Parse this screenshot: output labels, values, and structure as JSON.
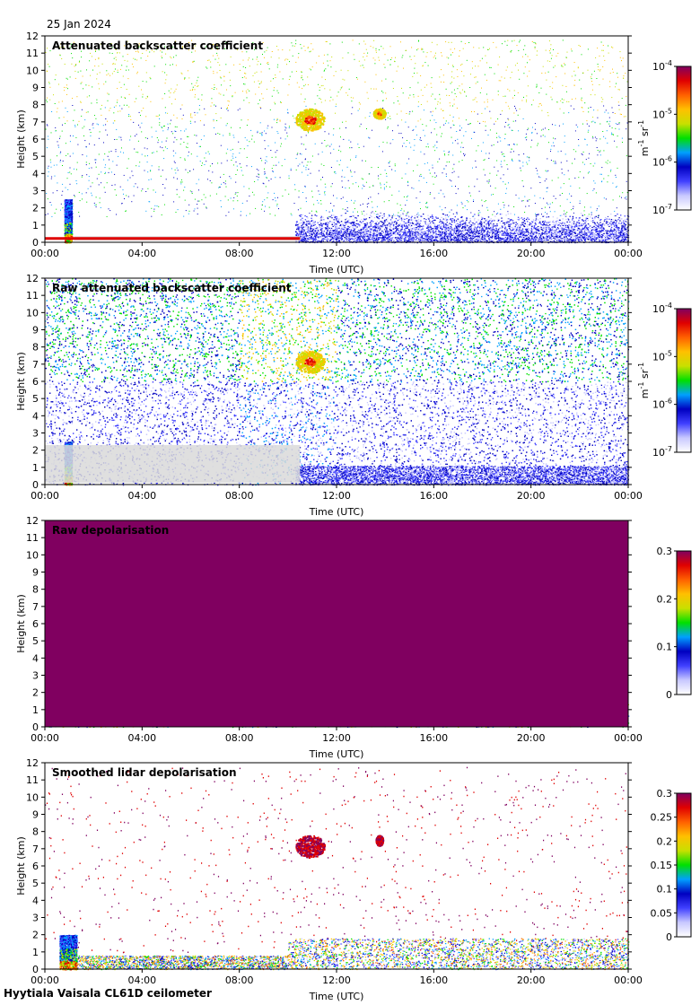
{
  "date": "25 Jan 2024",
  "footer": "Hyytiala Vaisala CL61D ceilometer",
  "colors": {
    "rainbow": [
      "#ffffff",
      "#c8c8ff",
      "#4040ff",
      "#0000c0",
      "#00a0ff",
      "#00e000",
      "#c8e000",
      "#ffc000",
      "#ff6000",
      "#e00000",
      "#800060"
    ],
    "gray_fill": "#d9d9d9",
    "frame": "#000000"
  },
  "chart_data": [
    {
      "type": "heatmap",
      "title": "Attenuated backscatter coefficient",
      "xlabel": "Time (UTC)",
      "ylabel": "Height (km)",
      "x_ticks": [
        "00:00",
        "04:00",
        "08:00",
        "12:00",
        "16:00",
        "20:00",
        "00:00"
      ],
      "y_ticks": [
        "0",
        "1",
        "2",
        "3",
        "4",
        "5",
        "6",
        "7",
        "8",
        "9",
        "10",
        "11",
        "12"
      ],
      "ylim": [
        0,
        12
      ],
      "colorbar": {
        "scale": "log",
        "ticks": [
          "10",
          "10",
          "10",
          "10"
        ],
        "exponents": [
          "-7",
          "-6",
          "-5",
          "-4"
        ],
        "unit": "m",
        "unit_exp1": "-1",
        "unit_mid": " sr",
        "unit_exp2": "-1"
      },
      "features": [
        {
          "kind": "rain",
          "time_h": [
            0.8,
            1.1
          ],
          "height_km": [
            0,
            2.5
          ],
          "level": "high"
        },
        {
          "kind": "low_layer",
          "time_h": [
            0,
            10.5
          ],
          "height_km": [
            0,
            0.3
          ],
          "level": "high"
        },
        {
          "kind": "aerosol",
          "time_h": [
            10.5,
            24
          ],
          "height_km": [
            0,
            1.7
          ],
          "level": "low"
        },
        {
          "kind": "cloud",
          "time_h": [
            10.3,
            11.5
          ],
          "height_km": [
            6.5,
            7.8
          ],
          "level": "mid"
        },
        {
          "kind": "cloud",
          "time_h": [
            13.5,
            14.0
          ],
          "height_km": [
            7.2,
            7.8
          ],
          "level": "mid"
        }
      ]
    },
    {
      "type": "heatmap",
      "title": "Raw attenuated backscatter coefficient",
      "xlabel": "Time (UTC)",
      "ylabel": "Height (km)",
      "x_ticks": [
        "00:00",
        "04:00",
        "08:00",
        "12:00",
        "16:00",
        "20:00",
        "00:00"
      ],
      "y_ticks": [
        "0",
        "1",
        "2",
        "3",
        "4",
        "5",
        "6",
        "7",
        "8",
        "9",
        "10",
        "11",
        "12"
      ],
      "ylim": [
        0,
        12
      ],
      "colorbar": {
        "scale": "log",
        "ticks": [
          "10",
          "10",
          "10",
          "10"
        ],
        "exponents": [
          "-7",
          "-6",
          "-5",
          "-4"
        ],
        "unit": "m",
        "unit_exp1": "-1",
        "unit_mid": " sr",
        "unit_exp2": "-1"
      },
      "features": [
        {
          "kind": "noise",
          "time_h": [
            0,
            24
          ],
          "height_km": [
            0,
            12
          ],
          "level": "noise"
        },
        {
          "kind": "rain",
          "time_h": [
            0.8,
            1.1
          ],
          "height_km": [
            0,
            2.5
          ],
          "level": "high"
        },
        {
          "kind": "cloud",
          "time_h": [
            10.3,
            11.5
          ],
          "height_km": [
            6.5,
            7.8
          ],
          "level": "mid"
        }
      ]
    },
    {
      "type": "heatmap",
      "title": "Raw depolarisation",
      "xlabel": "Time (UTC)",
      "ylabel": "Height (km)",
      "x_ticks": [
        "00:00",
        "04:00",
        "08:00",
        "12:00",
        "16:00",
        "20:00",
        "00:00"
      ],
      "y_ticks": [
        "0",
        "1",
        "2",
        "3",
        "4",
        "5",
        "6",
        "7",
        "8",
        "9",
        "10",
        "11",
        "12"
      ],
      "ylim": [
        0,
        12
      ],
      "colorbar": {
        "scale": "linear",
        "ticks": [
          "0",
          "0.1",
          "0.2",
          "0.3"
        ],
        "range": [
          0,
          0.3
        ]
      },
      "features": [
        {
          "kind": "depol_noise",
          "time_h": [
            0,
            24
          ],
          "height_km": [
            0,
            12
          ],
          "level": "noise"
        }
      ]
    },
    {
      "type": "heatmap",
      "title": "Smoothed lidar depolarisation",
      "xlabel": "Time (UTC)",
      "ylabel": "Height (km)",
      "x_ticks": [
        "00:00",
        "04:00",
        "08:00",
        "12:00",
        "16:00",
        "20:00",
        "00:00"
      ],
      "y_ticks": [
        "0",
        "1",
        "2",
        "3",
        "4",
        "5",
        "6",
        "7",
        "8",
        "9",
        "10",
        "11",
        "12"
      ],
      "ylim": [
        0,
        12
      ],
      "colorbar": {
        "scale": "linear",
        "ticks": [
          "0",
          "0.05",
          "0.1",
          "0.15",
          "0.2",
          "0.25",
          "0.3"
        ],
        "range": [
          0,
          0.3
        ]
      },
      "features": [
        {
          "kind": "rain",
          "time_h": [
            0.6,
            1.3
          ],
          "height_km": [
            0,
            2.0
          ],
          "level": "high"
        },
        {
          "kind": "cloud",
          "time_h": [
            10.3,
            11.5
          ],
          "height_km": [
            6.5,
            7.8
          ],
          "level": "max"
        },
        {
          "kind": "cloud",
          "time_h": [
            13.6,
            13.9
          ],
          "height_km": [
            7.2,
            7.8
          ],
          "level": "max"
        }
      ]
    }
  ]
}
